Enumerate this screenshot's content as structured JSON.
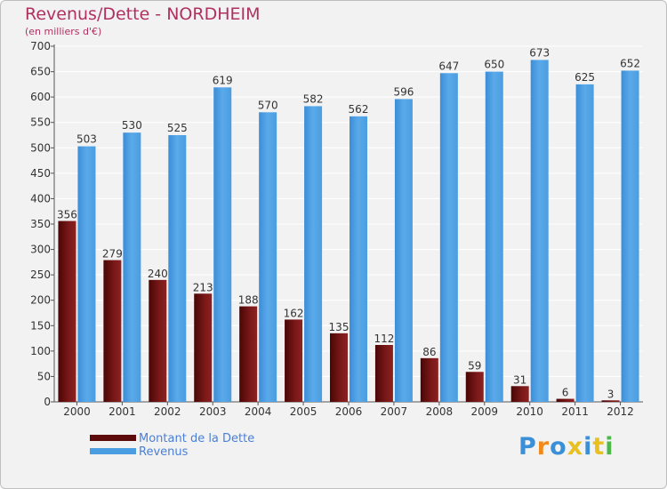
{
  "header": {
    "title": "Revenus/Dette - NORDHEIM",
    "subtitle": "(en milliers d'€)"
  },
  "chart_data": {
    "type": "bar",
    "categories": [
      "2000",
      "2001",
      "2002",
      "2003",
      "2004",
      "2005",
      "2006",
      "2007",
      "2008",
      "2009",
      "2010",
      "2011",
      "2012"
    ],
    "series": [
      {
        "name": "Montant de la Dette",
        "color": "#7a1313",
        "values": [
          356,
          279,
          240,
          213,
          188,
          162,
          135,
          112,
          86,
          59,
          31,
          6,
          3
        ]
      },
      {
        "name": "Revenus",
        "color": "#4a9de0",
        "values": [
          503,
          530,
          525,
          619,
          570,
          582,
          562,
          596,
          647,
          650,
          673,
          625,
          652
        ]
      }
    ],
    "ylim": [
      0,
      700
    ],
    "yticks": [
      0,
      50,
      100,
      150,
      200,
      250,
      300,
      350,
      400,
      450,
      500,
      550,
      600,
      650,
      700
    ],
    "grid": true,
    "data_labels": true,
    "legend_position": "bottom-left"
  },
  "legend": {
    "items": [
      {
        "label": "Montant de la Dette",
        "color": "#5c0a0a"
      },
      {
        "label": "Revenus",
        "color": "#4a9de0"
      }
    ]
  },
  "logo": {
    "text": "Proxiti",
    "letter_colors": [
      "#3a8fd6",
      "#f08a1a",
      "#3a8fd6",
      "#e8c020",
      "#3a8fd6",
      "#e8c020",
      "#4bb848"
    ]
  }
}
